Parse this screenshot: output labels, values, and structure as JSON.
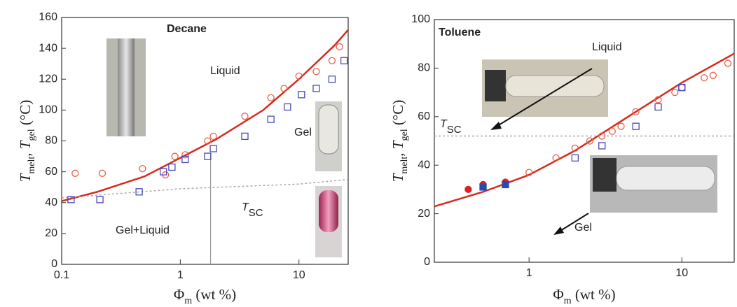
{
  "chart_data": [
    {
      "type": "scatter",
      "xlog": true,
      "xlim": [
        0.1,
        26
      ],
      "ylim": [
        0,
        160
      ],
      "xticks": [
        0.1,
        1,
        10
      ],
      "yticks": [
        0,
        20,
        40,
        60,
        80,
        100,
        120,
        140,
        160
      ],
      "title": "Decane",
      "xlabel": [
        {
          "t": "Φ"
        },
        {
          "s": "m"
        },
        {
          "t": " (wt %)"
        }
      ],
      "ylabel": [
        {
          "t": "T"
        },
        {
          "s": "melt"
        },
        {
          "t": ", T"
        },
        {
          "s": "gel"
        },
        {
          "t": " (°C)"
        }
      ],
      "annotations": [
        {
          "text": "Liquid"
        },
        {
          "text": "Gel"
        },
        {
          "text": "Gel+Liquid"
        },
        {
          "text": "T",
          "sub": "SC"
        }
      ],
      "vline": 1.8,
      "series": [
        {
          "color": "#d62b1e",
          "line": true,
          "x": [
            0.1,
            0.2,
            0.5,
            1,
            2,
            5,
            10,
            20,
            26
          ],
          "values": [
            41,
            47,
            57,
            69,
            81,
            100,
            120,
            142,
            152
          ]
        },
        {
          "color": "#aaaaaa",
          "line": true,
          "x": [
            0.1,
            1,
            10,
            26
          ],
          "values": [
            43,
            49,
            52,
            55
          ]
        },
        {
          "color": "#e8604a",
          "marker": "circle",
          "filled": false,
          "x": [
            0.13,
            0.22,
            0.48,
            0.75,
            0.9,
            1.1,
            1.7,
            1.9,
            3.5,
            5.8,
            7.5,
            10,
            14,
            19,
            22
          ],
          "values": [
            59,
            59,
            62,
            58,
            70,
            71,
            80,
            83,
            96,
            108,
            114,
            122,
            125,
            132,
            141
          ]
        },
        {
          "color": "#4a4ab8",
          "marker": "square",
          "filled": false,
          "x": [
            0.12,
            0.21,
            0.45,
            0.72,
            0.85,
            1.1,
            1.7,
            1.9,
            3.5,
            5.8,
            8,
            10.5,
            14,
            19,
            24
          ],
          "values": [
            42,
            42,
            47,
            60,
            63,
            68,
            70,
            75,
            83,
            94,
            102,
            110,
            114,
            120,
            132
          ]
        }
      ]
    },
    {
      "type": "scatter",
      "xlog": true,
      "xlim": [
        0.24,
        22
      ],
      "ylim": [
        0,
        100
      ],
      "xticks": [
        1,
        10
      ],
      "yticks": [
        0,
        20,
        40,
        60,
        80,
        100
      ],
      "title": "Toluene",
      "xlabel": [
        {
          "t": "Φ"
        },
        {
          "s": "m"
        },
        {
          "t": " (wt %)"
        }
      ],
      "ylabel": [
        {
          "t": "T"
        },
        {
          "s": "melt"
        },
        {
          "t": ", T"
        },
        {
          "s": "gel"
        },
        {
          "t": " (°C)"
        }
      ],
      "annotations": [
        {
          "text": "Liquid"
        },
        {
          "text": "Gel"
        },
        {
          "text": "T",
          "sub": "SC"
        }
      ],
      "series": [
        {
          "color": "#d62b1e",
          "line": true,
          "x": [
            0.24,
            0.5,
            1,
            2,
            5,
            10,
            22
          ],
          "values": [
            23,
            29,
            36,
            46,
            62,
            74,
            86
          ]
        },
        {
          "color": "#aaaaaa",
          "line": true,
          "x": [
            0.24,
            1,
            10,
            22
          ],
          "values": [
            52,
            52,
            52,
            52
          ]
        },
        {
          "color": "#e8604a",
          "marker": "circle",
          "filled": false,
          "x": [
            1,
            1.5,
            2,
            2.5,
            3,
            3.5,
            4,
            5,
            7,
            9,
            10,
            14,
            16,
            20
          ],
          "values": [
            37,
            43,
            47,
            50,
            52,
            54,
            56,
            62,
            67,
            70,
            72,
            76,
            77,
            82
          ]
        },
        {
          "color": "#4a4ab8",
          "marker": "square",
          "filled": false,
          "x": [
            2,
            3,
            5,
            7,
            10
          ],
          "values": [
            43,
            48,
            56,
            64,
            72
          ]
        },
        {
          "color": "#e02020",
          "marker": "circle",
          "filled": true,
          "x": [
            0.4,
            0.5,
            0.7
          ],
          "values": [
            30,
            32,
            33
          ]
        },
        {
          "color": "#2a4ab0",
          "marker": "square",
          "filled": true,
          "x": [
            0.5,
            0.7
          ],
          "values": [
            31,
            32
          ]
        }
      ]
    }
  ]
}
